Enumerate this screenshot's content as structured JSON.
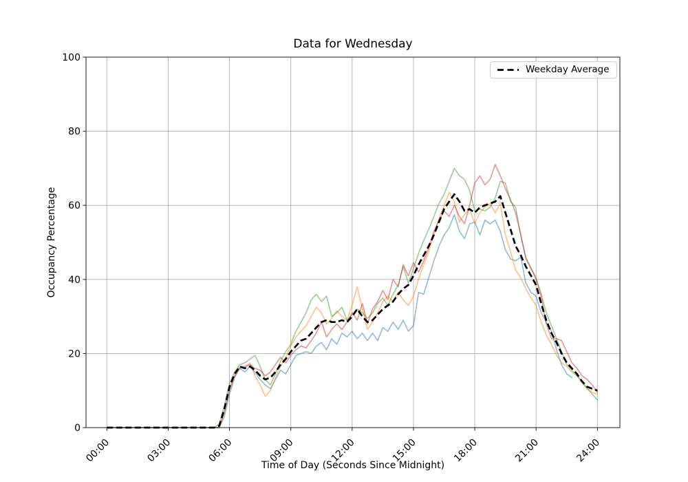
{
  "chart_data": {
    "type": "line",
    "title": "Data for Wednesday",
    "xlabel": "Time of Day (Seconds Since Midnight)",
    "ylabel": "Occupancy Percentage",
    "grid": true,
    "legend": {
      "label": "Weekday Average",
      "position": "upper right"
    },
    "x_axis": {
      "tick_labels": [
        "00:00",
        "03:00",
        "06:00",
        "09:00",
        "12:00",
        "15:00",
        "18:00",
        "21:00",
        "24:00"
      ],
      "tick_hours": [
        0,
        3,
        6,
        9,
        12,
        15,
        18,
        21,
        24
      ],
      "range_hours": [
        -1.02,
        25.1
      ]
    },
    "y_axis": {
      "ticks": [
        0,
        20,
        40,
        60,
        80,
        100
      ],
      "range": [
        0,
        100
      ]
    },
    "style": {
      "grid_color": "#b0b0b0",
      "spine_color": "#1a1a1a",
      "background": "#ffffff",
      "average_color": "#000000",
      "average_dash": "9 4.5",
      "series_line_width": 1.6,
      "average_line_width": 2.7
    },
    "x_step_hours": 0.25,
    "series": [
      {
        "id": "line-1",
        "color": "rgba(31,119,180,0.5)",
        "values": [
          0,
          0,
          0,
          0,
          0,
          0,
          0,
          0,
          0,
          0,
          0,
          0,
          0,
          0,
          0,
          0,
          0,
          0,
          0,
          0,
          0,
          0,
          0,
          3,
          9,
          13.5,
          16,
          15,
          16.5,
          15,
          13,
          11.5,
          10.5,
          13,
          15.5,
          14.5,
          17,
          19.5,
          20,
          20.5,
          20,
          22,
          23,
          21,
          24,
          22.5,
          25.5,
          24.5,
          26,
          24,
          25.5,
          23.5,
          25.5,
          23.5,
          27,
          26,
          28.5,
          26.5,
          29,
          26,
          27.5,
          36.5,
          36,
          40.5,
          45,
          49,
          52,
          54,
          57.5,
          53,
          51,
          55,
          55.5,
          52,
          56,
          55,
          56,
          53,
          48,
          45.5,
          45,
          46,
          39,
          36.5,
          35.5,
          31,
          28.5,
          26,
          21,
          17,
          14.5,
          13.5
        ]
      },
      {
        "id": "line-2",
        "color": "rgba(255,127,14,0.5)",
        "values": [
          0,
          0,
          0,
          0,
          0,
          0,
          0,
          0,
          0,
          0,
          0,
          0,
          0,
          0,
          0,
          0,
          0,
          0,
          0,
          0,
          0,
          0,
          0,
          4,
          10,
          14,
          16.5,
          16,
          17.5,
          14,
          11.5,
          8.5,
          10,
          13.5,
          16.5,
          19,
          22,
          24.5,
          26,
          27.5,
          30,
          32.5,
          31,
          28,
          29.5,
          31.5,
          30,
          29,
          33,
          38,
          32,
          26.5,
          28.5,
          31,
          34,
          35.5,
          34,
          36.5,
          34.5,
          33,
          35.5,
          40,
          44,
          47.5,
          52,
          56.5,
          60,
          63.5,
          61,
          55.5,
          57.5,
          59,
          55,
          58,
          59.5,
          60.5,
          58,
          60.5,
          52,
          47.5,
          42.5,
          40.5,
          37.5,
          35,
          33,
          28.5,
          25,
          22.5,
          19.5,
          17.5,
          16.5,
          15,
          14,
          12,
          10.5,
          9.5,
          9
        ]
      },
      {
        "id": "line-3",
        "color": "rgba(44,160,44,0.5)",
        "values": [
          0,
          0,
          0,
          0,
          0,
          0,
          0,
          0,
          0,
          0,
          0,
          0,
          0,
          0,
          0,
          0,
          0,
          0,
          0,
          0,
          0,
          0,
          1,
          6,
          12,
          15,
          17,
          17.5,
          18.5,
          19.5,
          16.5,
          13,
          11.5,
          14.5,
          18,
          20.5,
          22.5,
          26,
          28.5,
          31,
          34.5,
          36,
          34,
          35.5,
          30,
          31,
          32.5,
          29,
          30.5,
          32,
          31,
          29.5,
          31,
          33.5,
          35,
          33,
          36,
          38.5,
          43.5,
          39,
          43,
          47,
          50.5,
          53.5,
          57,
          60.5,
          63,
          66.5,
          70,
          68,
          67,
          64,
          58.5,
          59,
          58.5,
          59.5,
          62,
          66.5,
          66,
          61,
          59.5,
          52,
          46,
          43,
          40.5,
          36,
          31,
          27.5,
          24,
          20.5,
          17,
          15.5,
          14,
          12.5,
          10.5,
          9,
          7.5
        ]
      },
      {
        "id": "line-4",
        "color": "rgba(214,39,40,0.5)",
        "values": [
          0,
          0,
          0,
          0,
          0,
          0,
          0,
          0,
          0,
          0,
          0,
          0,
          0,
          0,
          0,
          0,
          0,
          0,
          0,
          0,
          0,
          0,
          0,
          4.5,
          10.5,
          14,
          16,
          16.5,
          17,
          16,
          15.5,
          14,
          15,
          17,
          19,
          17.5,
          19.5,
          21,
          22,
          21.5,
          23.5,
          25.5,
          28.5,
          24.5,
          26.5,
          28,
          26.5,
          28.5,
          31,
          29,
          33.5,
          28,
          32,
          34,
          37,
          34.5,
          40,
          38,
          44,
          41,
          44.5,
          42,
          45,
          48.5,
          53,
          56,
          58.5,
          57,
          60,
          57,
          55,
          60,
          66,
          68,
          65.5,
          67,
          71,
          68,
          64.5,
          61.5,
          58,
          52,
          45.5,
          43,
          40,
          35.5,
          28,
          24,
          24,
          23.5,
          20.5,
          17.5,
          16,
          14,
          13,
          11.5,
          9.5
        ]
      }
    ],
    "average": {
      "id": "weekday-average",
      "label": "Weekday Average",
      "values": [
        0,
        0,
        0,
        0,
        0,
        0,
        0,
        0,
        0,
        0,
        0,
        0,
        0,
        0,
        0,
        0,
        0,
        0,
        0,
        0,
        0,
        0,
        0.5,
        5,
        11,
        14.5,
        16.5,
        16,
        16.5,
        15.5,
        14,
        13,
        13.5,
        15,
        17,
        18.5,
        20.5,
        22,
        23.5,
        24,
        25.5,
        27,
        28.5,
        29,
        28.5,
        28.5,
        29,
        28.5,
        30,
        32,
        30,
        28.5,
        29,
        30.5,
        32,
        33,
        34,
        36,
        37.5,
        38.5,
        41,
        44,
        46.5,
        49,
        52,
        55.5,
        59,
        61,
        63,
        61,
        58.5,
        59,
        58,
        59.5,
        60,
        60.5,
        61,
        62.5,
        58,
        53.5,
        49,
        46.5,
        43.5,
        41,
        38.5,
        33.5,
        29,
        25.5,
        23,
        20,
        17.5,
        16,
        14.5,
        12.5,
        11,
        10.5,
        10
      ]
    }
  }
}
